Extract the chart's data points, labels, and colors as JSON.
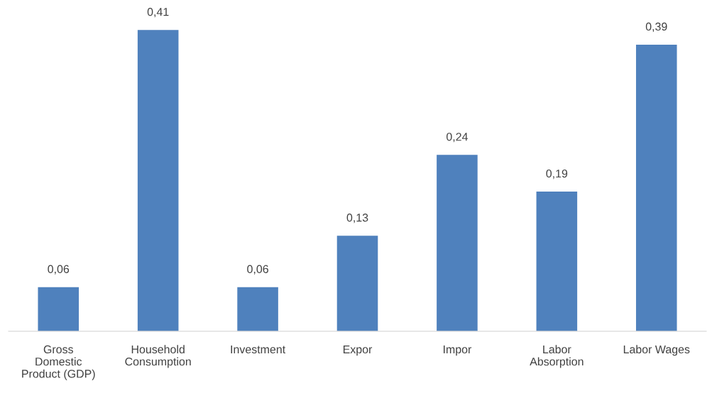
{
  "chart_data": {
    "type": "bar",
    "categories": [
      "Gross Domestic Product (GDP)",
      "Household Consumption",
      "Investment",
      "Expor",
      "Impor",
      "Labor Absorption",
      "Labor Wages"
    ],
    "values": [
      0.06,
      0.41,
      0.06,
      0.13,
      0.24,
      0.19,
      0.39
    ],
    "value_labels": [
      "0,06",
      "0,41",
      "0,06",
      "0,13",
      "0,24",
      "0,19",
      "0,39"
    ],
    "color": "#4f81bd",
    "tick_labels": "x",
    "grid": false,
    "legend": false
  }
}
